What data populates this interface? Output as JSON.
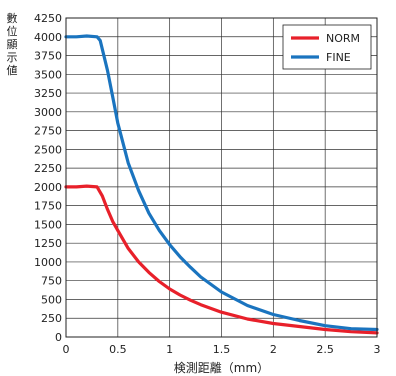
{
  "chart_data": {
    "type": "line",
    "title": "",
    "xlabel": "検測距離（mm）",
    "ylabel": "數位顯示値",
    "xlim": [
      0,
      3
    ],
    "ylim": [
      0,
      4250
    ],
    "xticks": [
      "0",
      "0.5",
      "1",
      "1.5",
      "2",
      "2.5",
      "3"
    ],
    "yticks": [
      "0",
      "250",
      "500",
      "750",
      "1000",
      "1250",
      "1500",
      "1750",
      "2000",
      "2250",
      "2500",
      "2750",
      "3000",
      "3250",
      "3500",
      "3750",
      "4000",
      "4250"
    ],
    "grid": true,
    "legend_position": "top-right",
    "series": [
      {
        "name": "NORM",
        "color": "#e8202a",
        "x": [
          0,
          0.1,
          0.2,
          0.3,
          0.35,
          0.4,
          0.45,
          0.5,
          0.6,
          0.7,
          0.8,
          0.9,
          1.0,
          1.1,
          1.2,
          1.3,
          1.5,
          1.75,
          2.0,
          2.25,
          2.5,
          2.75,
          3.0
        ],
        "values": [
          2000,
          2000,
          2010,
          2000,
          1880,
          1700,
          1540,
          1420,
          1180,
          1000,
          860,
          740,
          640,
          560,
          490,
          430,
          330,
          240,
          180,
          140,
          100,
          70,
          55
        ]
      },
      {
        "name": "FINE",
        "color": "#1a74bf",
        "x": [
          0,
          0.1,
          0.2,
          0.3,
          0.33,
          0.4,
          0.45,
          0.5,
          0.6,
          0.7,
          0.8,
          0.9,
          1.0,
          1.1,
          1.2,
          1.3,
          1.5,
          1.75,
          2.0,
          2.25,
          2.5,
          2.75,
          3.0
        ],
        "values": [
          4000,
          4000,
          4010,
          4000,
          3950,
          3550,
          3200,
          2850,
          2320,
          1950,
          1650,
          1420,
          1230,
          1070,
          930,
          800,
          600,
          420,
          300,
          220,
          150,
          110,
          100
        ]
      }
    ]
  }
}
